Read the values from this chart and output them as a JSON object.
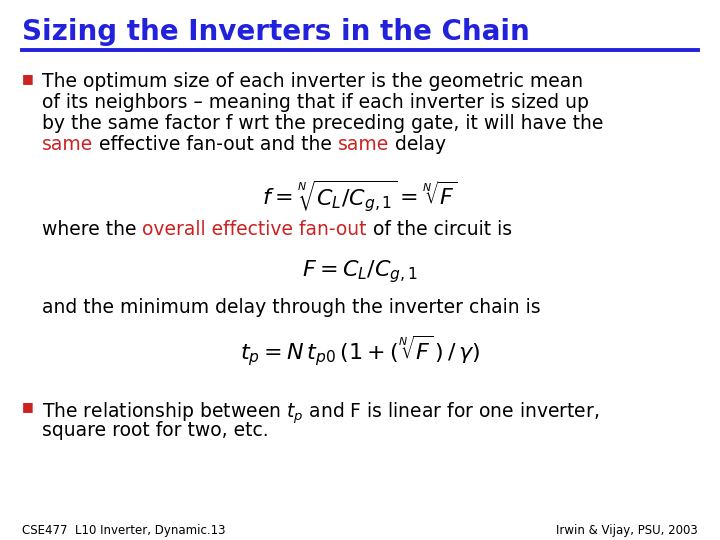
{
  "background_color": "#ffffff",
  "title": "Sizing the Inverters in the Chain",
  "title_color": "#2222dd",
  "title_underline_color": "#2222dd",
  "title_fontsize": 20,
  "body_fontsize": 13.5,
  "formula_fontsize": 14,
  "small_fontsize": 8.5,
  "bullet_color": "#cc0000",
  "text_color": "#000000",
  "red_color": "#cc2222",
  "footer_left": "CSE477  L10 Inverter, Dynamic.13",
  "footer_right": "Irwin & Vijay, PSU, 2003"
}
